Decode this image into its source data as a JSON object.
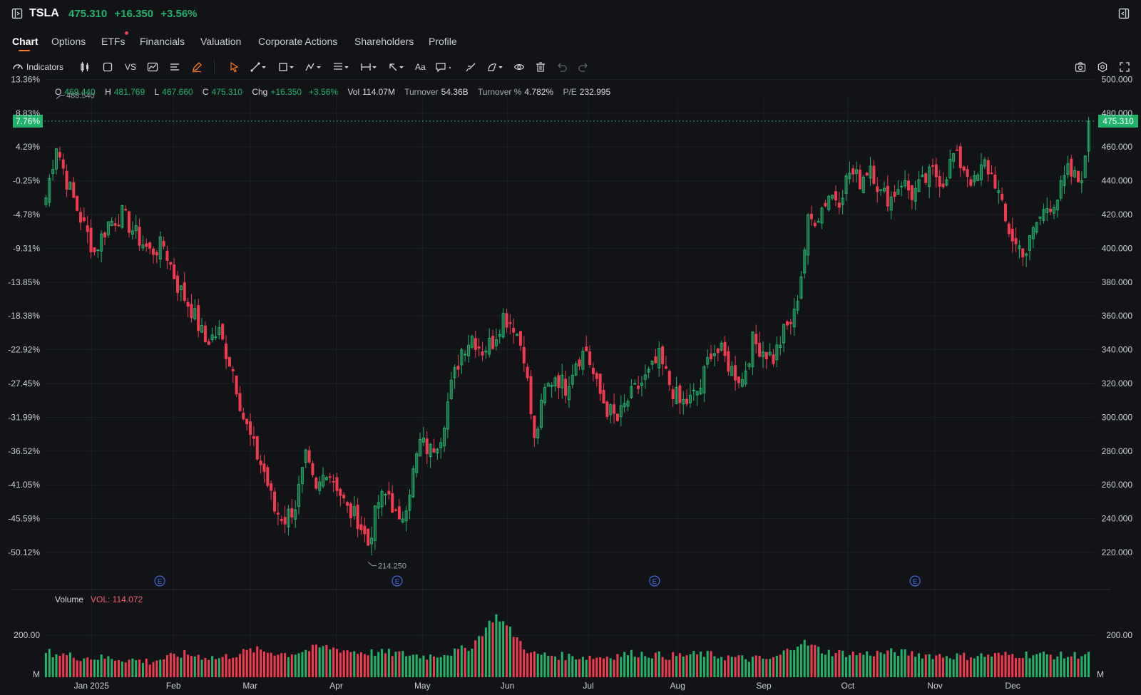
{
  "header": {
    "ticker": "TSLA",
    "price": "475.310",
    "change": "+16.350",
    "change_pct": "+3.56%"
  },
  "tabs": [
    {
      "label": "Chart",
      "active": true
    },
    {
      "label": "Options"
    },
    {
      "label": "ETFs",
      "has_dot": true
    },
    {
      "label": "Financials"
    },
    {
      "label": "Valuation"
    },
    {
      "label": "Corporate Actions"
    },
    {
      "label": "Shareholders"
    },
    {
      "label": "Profile"
    }
  ],
  "toolbar": {
    "indicators_label": "Indicators",
    "vs_label": "VS",
    "text_label": "Aa"
  },
  "ohlc": {
    "o_label": "O",
    "o_value": "469.440",
    "h_label": "H",
    "h_value": "481.769",
    "l_label": "L",
    "l_value": "467.660",
    "c_label": "C",
    "c_value": "475.310",
    "chg_label": "Chg",
    "chg_value": "+16.350",
    "chg_pct": "+3.56%",
    "vol_label": "Vol",
    "vol_value": "114.07M",
    "turnover_label": "Turnover",
    "turnover_value": "54.36B",
    "turnover_pct_label": "Turnover %",
    "turnover_pct_value": "4.782%",
    "pe_label": "P/E",
    "pe_value": "232.995"
  },
  "volume": {
    "label": "Volume",
    "value_label": "VOL: 114.072",
    "axis_label": "200.00",
    "unit": "M"
  },
  "colors": {
    "up": "#22b36a",
    "down": "#f23a4f",
    "accent": "#ff7a1a",
    "background": "#121317",
    "earnings": "#3d6be0"
  },
  "chart_data": {
    "type": "candlestick",
    "price_labels": [
      "500.000",
      "480.000",
      "460.000",
      "440.000",
      "420.000",
      "400.000",
      "380.000",
      "360.000",
      "340.000",
      "320.000",
      "300.000",
      "280.000",
      "260.000",
      "240.000",
      "220.000"
    ],
    "price_ticks": [
      500,
      480,
      460,
      440,
      420,
      400,
      380,
      360,
      340,
      320,
      300,
      280,
      260,
      240,
      220
    ],
    "pct_labels": [
      "13.36%",
      "8.83%",
      "4.29%",
      "-0.25%",
      "-4.78%",
      "-9.31%",
      "-13.85%",
      "-18.38%",
      "-22.92%",
      "-27.45%",
      "-31.99%",
      "-36.52%",
      "-41.05%",
      "-45.59%",
      "-50.12%"
    ],
    "x_labels": [
      "Jan 2025",
      "Feb",
      "Mar",
      "Apr",
      "May",
      "Jun",
      "Jul",
      "Aug",
      "Sep",
      "Oct",
      "Nov",
      "Dec"
    ],
    "x_label_positions": [
      0.045,
      0.123,
      0.196,
      0.278,
      0.36,
      0.441,
      0.518,
      0.603,
      0.685,
      0.765,
      0.848,
      0.922
    ],
    "current_price": 475.31,
    "current_price_label": "475.310",
    "current_pct_label": "7.76%",
    "high_annotation": {
      "value": 488.54,
      "label": "488.540",
      "index": 3
    },
    "low_annotation": {
      "value": 214.25,
      "label": "214.250",
      "index": 93
    },
    "earnings_marker_label": "E",
    "earnings_positions": [
      0.11,
      0.336,
      0.581,
      0.829
    ],
    "anchors": [
      [
        0,
        430
      ],
      [
        3,
        462
      ],
      [
        6,
        440
      ],
      [
        10,
        418
      ],
      [
        14,
        398
      ],
      [
        18,
        415
      ],
      [
        22,
        420
      ],
      [
        26,
        408
      ],
      [
        30,
        398
      ],
      [
        34,
        402
      ],
      [
        38,
        378
      ],
      [
        42,
        364
      ],
      [
        46,
        345
      ],
      [
        50,
        350
      ],
      [
        54,
        328
      ],
      [
        57,
        300
      ],
      [
        60,
        282
      ],
      [
        63,
        268
      ],
      [
        66,
        245
      ],
      [
        69,
        240
      ],
      [
        72,
        248
      ],
      [
        75,
        275
      ],
      [
        78,
        255
      ],
      [
        81,
        270
      ],
      [
        84,
        260
      ],
      [
        87,
        245
      ],
      [
        90,
        240
      ],
      [
        93,
        225
      ],
      [
        96,
        250
      ],
      [
        99,
        255
      ],
      [
        102,
        235
      ],
      [
        105,
        258
      ],
      [
        108,
        285
      ],
      [
        111,
        280
      ],
      [
        114,
        290
      ],
      [
        117,
        318
      ],
      [
        120,
        340
      ],
      [
        123,
        348
      ],
      [
        126,
        340
      ],
      [
        129,
        345
      ],
      [
        132,
        360
      ],
      [
        135,
        355
      ],
      [
        138,
        338
      ],
      [
        141,
        285
      ],
      [
        144,
        315
      ],
      [
        147,
        325
      ],
      [
        150,
        318
      ],
      [
        153,
        334
      ],
      [
        156,
        340
      ],
      [
        159,
        318
      ],
      [
        162,
        305
      ],
      [
        165,
        298
      ],
      [
        168,
        310
      ],
      [
        171,
        318
      ],
      [
        174,
        325
      ],
      [
        177,
        335
      ],
      [
        180,
        320
      ],
      [
        183,
        308
      ],
      [
        186,
        310
      ],
      [
        189,
        318
      ],
      [
        192,
        340
      ],
      [
        195,
        338
      ],
      [
        198,
        328
      ],
      [
        201,
        322
      ],
      [
        204,
        345
      ],
      [
        207,
        340
      ],
      [
        210,
        335
      ],
      [
        213,
        350
      ],
      [
        216,
        360
      ],
      [
        218,
        385
      ],
      [
        220,
        415
      ],
      [
        223,
        420
      ],
      [
        226,
        432
      ],
      [
        229,
        430
      ],
      [
        232,
        445
      ],
      [
        235,
        440
      ],
      [
        238,
        450
      ],
      [
        241,
        432
      ],
      [
        244,
        430
      ],
      [
        247,
        440
      ],
      [
        250,
        432
      ],
      [
        253,
        438
      ],
      [
        256,
        445
      ],
      [
        259,
        440
      ],
      [
        262,
        455
      ],
      [
        265,
        448
      ],
      [
        268,
        438
      ],
      [
        271,
        450
      ],
      [
        274,
        440
      ],
      [
        277,
        415
      ],
      [
        280,
        402
      ],
      [
        283,
        398
      ],
      [
        286,
        415
      ],
      [
        289,
        425
      ],
      [
        292,
        430
      ],
      [
        295,
        445
      ],
      [
        298,
        440
      ],
      [
        301,
        455
      ]
    ],
    "candle_count": 302,
    "volume_anchors": [
      [
        0,
        120
      ],
      [
        10,
        95
      ],
      [
        20,
        90
      ],
      [
        30,
        75
      ],
      [
        40,
        110
      ],
      [
        50,
        90
      ],
      [
        60,
        130
      ],
      [
        70,
        110
      ],
      [
        80,
        145
      ],
      [
        90,
        120
      ],
      [
        100,
        115
      ],
      [
        110,
        100
      ],
      [
        118,
        120
      ],
      [
        123,
        150
      ],
      [
        130,
        300
      ],
      [
        140,
        110
      ],
      [
        150,
        100
      ],
      [
        160,
        95
      ],
      [
        170,
        115
      ],
      [
        180,
        100
      ],
      [
        190,
        110
      ],
      [
        200,
        90
      ],
      [
        210,
        85
      ],
      [
        218,
        170
      ],
      [
        225,
        120
      ],
      [
        235,
        110
      ],
      [
        245,
        120
      ],
      [
        255,
        105
      ],
      [
        265,
        100
      ],
      [
        275,
        105
      ],
      [
        285,
        110
      ],
      [
        295,
        100
      ],
      [
        301,
        114
      ]
    ],
    "volume_max": 340
  }
}
